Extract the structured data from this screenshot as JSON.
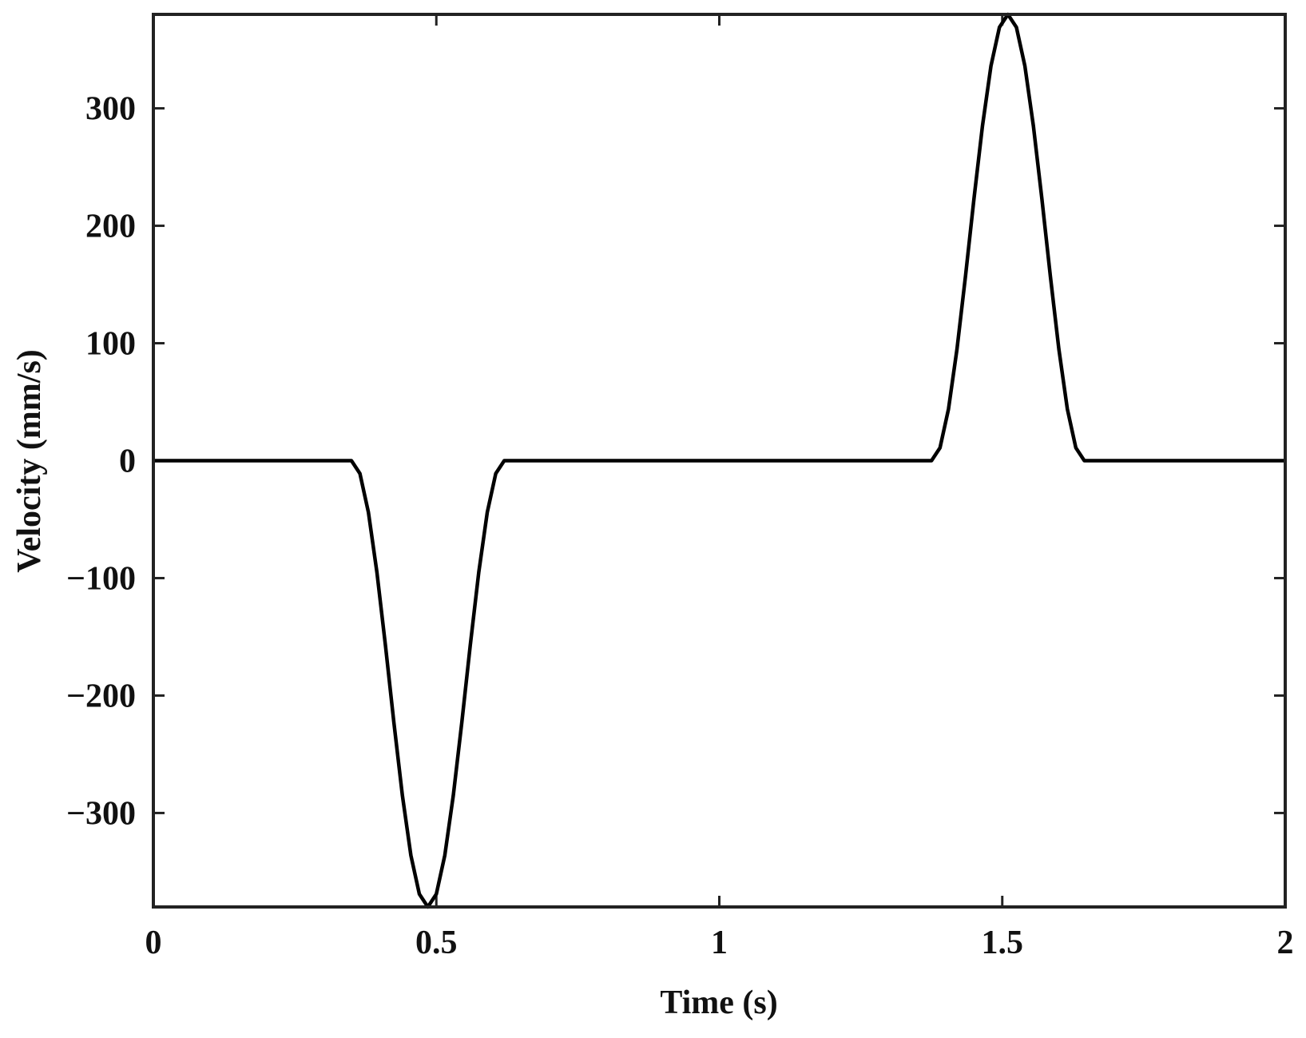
{
  "chart_data": {
    "type": "line",
    "x_label": "Time (s)",
    "y_label": "Velocity (mm/s)",
    "x": [
      0,
      0.35,
      0.365,
      0.38,
      0.395,
      0.41,
      0.425,
      0.44,
      0.455,
      0.47,
      0.485,
      0.5,
      0.515,
      0.53,
      0.545,
      0.56,
      0.575,
      0.59,
      0.605,
      0.62,
      1.375,
      1.39,
      1.405,
      1.42,
      1.435,
      1.45,
      1.465,
      1.48,
      1.495,
      1.51,
      1.525,
      1.54,
      1.555,
      1.57,
      1.585,
      1.6,
      1.615,
      1.63,
      1.645,
      2
    ],
    "series": [
      {
        "color": "#000000",
        "values": [
          0,
          0,
          -11,
          -44,
          -95,
          -157,
          -223,
          -285,
          -336,
          -369,
          -380,
          -369,
          -336,
          -285,
          -223,
          -157,
          -95,
          -44,
          -11,
          0,
          0,
          11,
          44,
          95,
          157,
          223,
          285,
          336,
          369,
          380,
          369,
          336,
          285,
          223,
          157,
          95,
          44,
          11,
          0,
          0
        ]
      }
    ],
    "xlim": [
      0,
      2
    ],
    "ylim": [
      -380,
      380
    ],
    "xticks": [
      0,
      0.5,
      1,
      1.5,
      2
    ],
    "yticks": [
      {
        "value": -300,
        "label": "−300"
      },
      {
        "value": -200,
        "label": "−200"
      },
      {
        "value": -100,
        "label": "−100"
      },
      0,
      100,
      200,
      300
    ],
    "grid": false
  }
}
